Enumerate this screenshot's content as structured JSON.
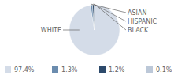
{
  "chart_data": {
    "type": "pie",
    "categories": [
      "WHITE",
      "ASIAN",
      "HISPANIC",
      "BLACK"
    ],
    "values": [
      97.4,
      1.3,
      1.2,
      0.1
    ],
    "value_labels": [
      "97.4%",
      "1.3%",
      "1.2%",
      "0.1%"
    ],
    "colors": [
      "#d4dce8",
      "#6b8cae",
      "#2d4a6b",
      "#bcc8d8"
    ],
    "legend": "bottom"
  }
}
